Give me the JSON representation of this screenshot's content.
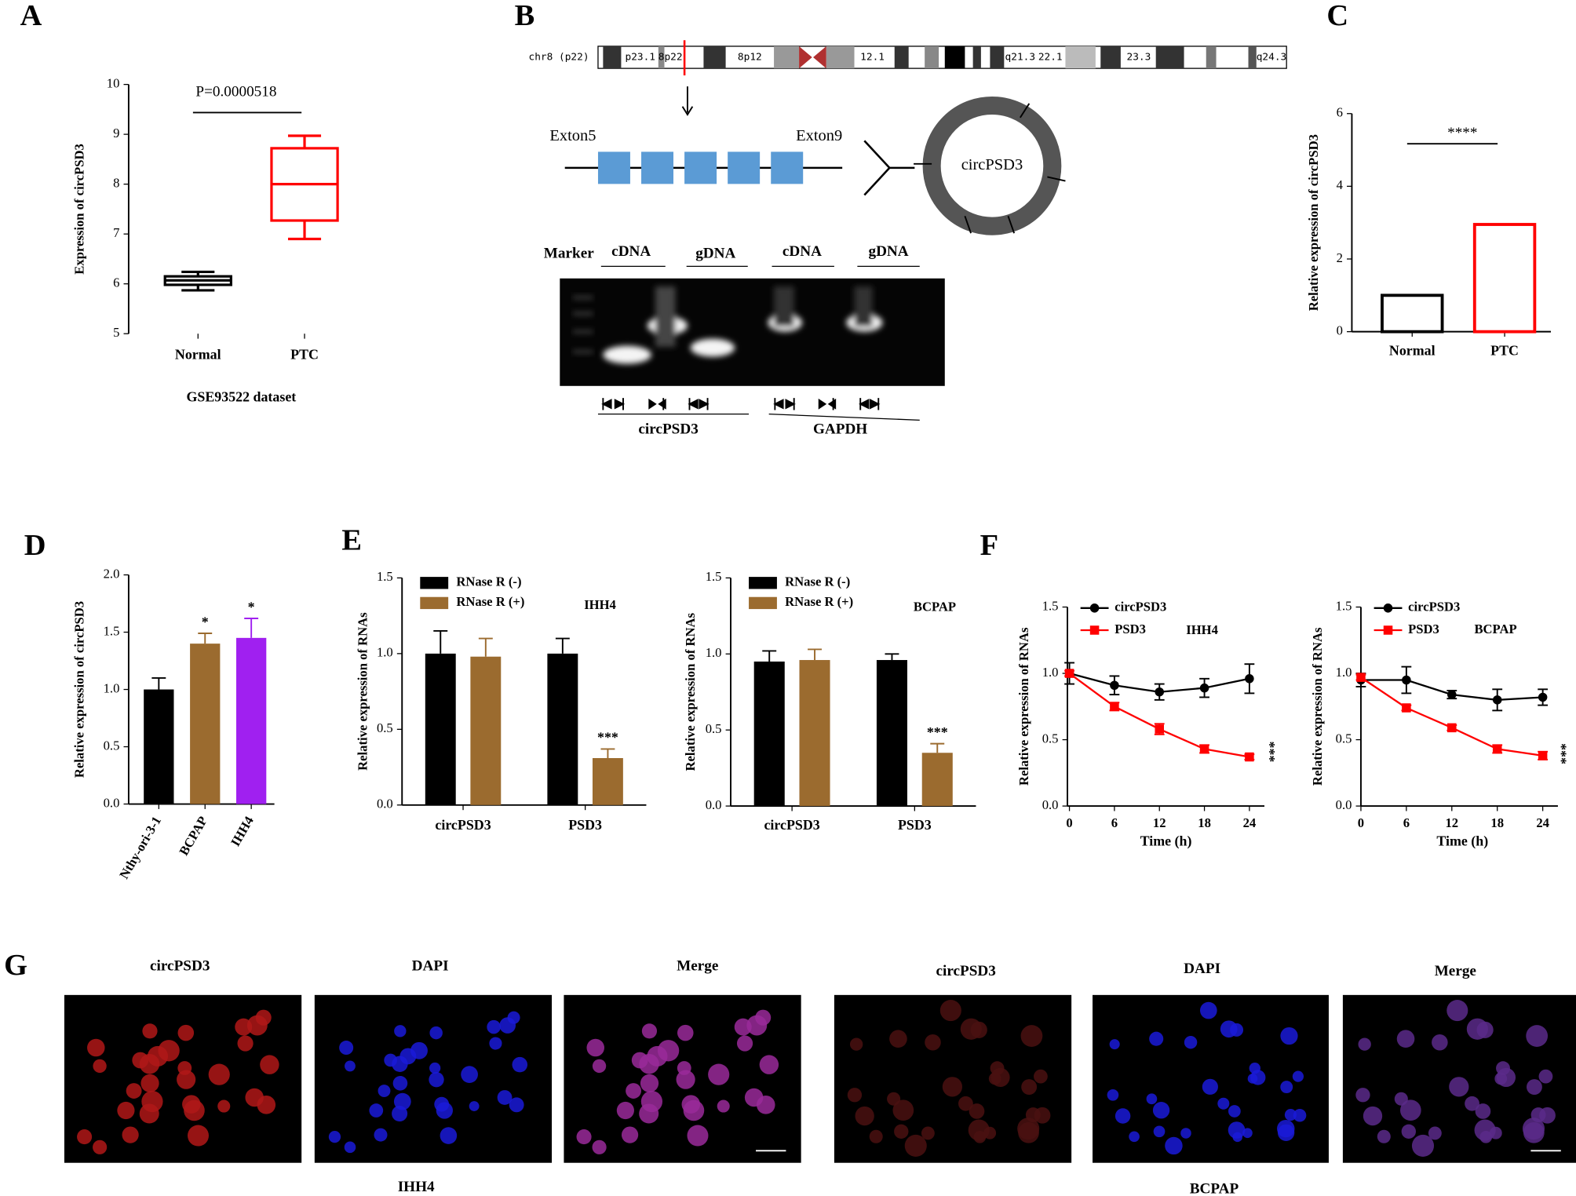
{
  "panel_labels": [
    "A",
    "B",
    "C",
    "D",
    "E",
    "F",
    "G"
  ],
  "chart_data": [
    {
      "type": "box",
      "ylabel": "Expression of circPSD3",
      "xlabel": "GSE93522 dataset",
      "annotation": "P=0.0000518",
      "categories": [
        "Normal",
        "PTC"
      ],
      "boxes": [
        {
          "color": "#000000",
          "min": 5.87,
          "q1": 5.98,
          "median": 6.07,
          "q3": 6.15,
          "max": 6.24
        },
        {
          "color": "#ff0000",
          "min": 6.9,
          "q1": 7.27,
          "median": 8.0,
          "q3": 8.72,
          "max": 8.97
        }
      ],
      "ylim": [
        5,
        10
      ],
      "yticks": [
        5,
        6,
        7,
        8,
        9,
        10
      ]
    },
    {
      "type": "bar",
      "style": "outline",
      "ylabel": "Relative expression of circPSD3",
      "annotation": "****",
      "categories": [
        "Normal",
        "PTC"
      ],
      "values": [
        1.0,
        2.95
      ],
      "colors": [
        "#000000",
        "#ff0000"
      ],
      "ylim": [
        0,
        6
      ],
      "yticks": [
        0,
        2,
        4,
        6
      ]
    },
    {
      "type": "bar",
      "ylabel": "Relative expression of circPSD3",
      "categories": [
        "Nthy-ori-3-1",
        "BCPAP",
        "IHH4"
      ],
      "values": [
        1.0,
        1.4,
        1.45
      ],
      "errors": [
        0.1,
        0.09,
        0.17
      ],
      "colors": [
        "#000000",
        "#9b6b2f",
        "#a020f0"
      ],
      "value_annotations": [
        null,
        "*",
        "*"
      ],
      "ylim": [
        0,
        2
      ],
      "yticks": [
        {
          "value": 0,
          "label": "0.0"
        },
        0.5,
        {
          "value": 1,
          "label": "1.0"
        },
        1.5,
        {
          "value": 2,
          "label": "2.0"
        }
      ]
    },
    {
      "type": "grouped_bar",
      "ylabel": "Relative expression of RNAs",
      "title": "IHH4",
      "categories": [
        "circPSD3",
        "PSD3"
      ],
      "series": [
        {
          "name": "RNase R (-)",
          "color": "#000000",
          "values": [
            1.0,
            1.0
          ],
          "errors": [
            0.15,
            0.1
          ]
        },
        {
          "name": "RNase R (+)",
          "color": "#9b6b2f",
          "values": [
            0.98,
            0.31
          ],
          "errors": [
            0.12,
            0.06
          ],
          "value_annotations": [
            null,
            "***"
          ]
        }
      ],
      "ylim": [
        0,
        1.5
      ],
      "yticks": [
        {
          "value": 0,
          "label": "0.0"
        },
        0.5,
        {
          "value": 1,
          "label": "1.0"
        },
        1.5
      ]
    },
    {
      "type": "grouped_bar",
      "ylabel": "Relative expression of RNAs",
      "title": "BCPAP",
      "categories": [
        "circPSD3",
        "PSD3"
      ],
      "series": [
        {
          "name": "RNase R (-)",
          "color": "#000000",
          "values": [
            0.95,
            0.96
          ],
          "errors": [
            0.07,
            0.04
          ]
        },
        {
          "name": "RNase R (+)",
          "color": "#9b6b2f",
          "values": [
            0.96,
            0.35
          ],
          "errors": [
            0.07,
            0.06
          ],
          "value_annotations": [
            null,
            "***"
          ]
        }
      ],
      "ylim": [
        0,
        1.5
      ],
      "yticks": [
        {
          "value": 0,
          "label": "0.0"
        },
        0.5,
        {
          "value": 1,
          "label": "1.0"
        },
        1.5
      ]
    },
    {
      "type": "line",
      "ylabel": "Relative expression of RNAs",
      "xlabel": "Time (h)",
      "title": "IHH4",
      "annotation": "***",
      "x": [
        0,
        6,
        12,
        18,
        24
      ],
      "series": [
        {
          "name": "circPSD3",
          "color": "#000000",
          "marker": "circle",
          "values": [
            1.0,
            0.91,
            0.86,
            0.89,
            0.96
          ],
          "errors": [
            0.08,
            0.07,
            0.06,
            0.07,
            0.11
          ]
        },
        {
          "name": "PSD3",
          "color": "#ff0000",
          "marker": "square",
          "values": [
            1.0,
            0.75,
            0.58,
            0.43,
            0.37
          ],
          "errors": [
            0.02,
            0.03,
            0.04,
            0.03,
            0.02
          ]
        }
      ],
      "xlim": [
        0,
        26
      ],
      "xticks": [
        0,
        6,
        12,
        18,
        24
      ],
      "ylim": [
        0,
        1.5
      ],
      "yticks": [
        {
          "value": 0,
          "label": "0.0"
        },
        0.5,
        {
          "value": 1,
          "label": "1.0"
        },
        1.5
      ]
    },
    {
      "type": "line",
      "ylabel": "Relative expression of RNAs",
      "xlabel": "Time (h)",
      "title": "BCPAP",
      "annotation": "***",
      "x": [
        0,
        6,
        12,
        18,
        24
      ],
      "series": [
        {
          "name": "circPSD3",
          "color": "#000000",
          "marker": "circle",
          "values": [
            0.95,
            0.95,
            0.84,
            0.8,
            0.82
          ],
          "errors": [
            0.05,
            0.1,
            0.03,
            0.08,
            0.06
          ]
        },
        {
          "name": "PSD3",
          "color": "#ff0000",
          "marker": "square",
          "values": [
            0.97,
            0.74,
            0.59,
            0.43,
            0.38
          ],
          "errors": [
            0.02,
            0.02,
            0.02,
            0.03,
            0.03
          ]
        }
      ],
      "xlim": [
        0,
        26
      ],
      "xticks": [
        0,
        6,
        12,
        18,
        24
      ],
      "ylim": [
        0,
        1.5
      ],
      "yticks": [
        {
          "value": 0,
          "label": "0.0"
        },
        0.5,
        {
          "value": 1,
          "label": "1.0"
        },
        1.5
      ]
    }
  ],
  "diagram": {
    "chromosome": "chr8 (p22)",
    "bands": [
      "p23.1",
      "8p22",
      "8p12",
      "12.1",
      "q21.3",
      "22.1",
      "23.3",
      "q24.3"
    ],
    "exon_start": "Exton5",
    "exon_end": "Exton9",
    "circle_label": "circPSD3",
    "gel_lanes": [
      "Marker",
      "cDNA",
      "gDNA",
      "cDNA",
      "gDNA"
    ],
    "gel_groups": [
      "circPSD3",
      "GAPDH"
    ]
  },
  "micrographs": {
    "channels": [
      "circPSD3",
      "DAPI",
      "Merge",
      "circPSD3",
      "DAPI",
      "Merge"
    ],
    "cell_lines": [
      "IHH4",
      "BCPAP"
    ]
  }
}
